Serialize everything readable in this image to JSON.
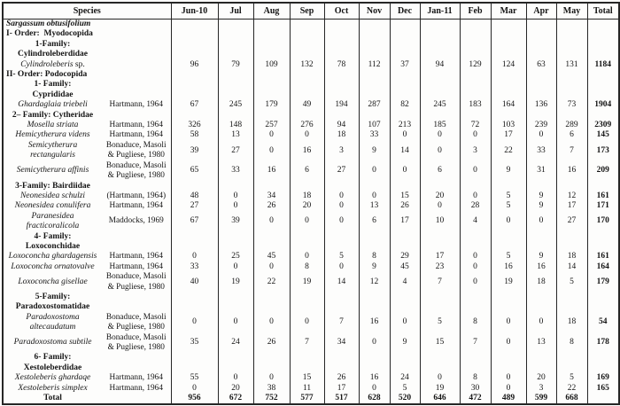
{
  "header": {
    "species_label": "Species",
    "months": [
      "Jun-10",
      "Jul",
      "Aug",
      "Sep",
      "Oct",
      "Nov",
      "Dec",
      "Jan-11",
      "Feb",
      "Mar",
      "Apr",
      "May",
      "Total"
    ]
  },
  "rows": [
    {
      "kind": "group",
      "style": "bolditalic",
      "align": "left",
      "name": "Sargassum obtusifolium"
    },
    {
      "kind": "group",
      "style": "bold",
      "align": "left",
      "name": "I- Order:  Myodocopida"
    },
    {
      "kind": "group",
      "style": "bold",
      "align": "center",
      "name": "1-Family:\nCylindroleberdidae"
    },
    {
      "kind": "species",
      "name": "Cylindroleberis",
      "name_plain": " sp.",
      "author": "",
      "values": [
        96,
        79,
        109,
        132,
        78,
        112,
        37,
        94,
        129,
        124,
        63,
        131
      ],
      "total": 1184
    },
    {
      "kind": "group",
      "style": "bold",
      "align": "left",
      "name": "II- Order: Podocopida"
    },
    {
      "kind": "group",
      "style": "bold",
      "align": "center",
      "name": "1- Family:\nCyprididae"
    },
    {
      "kind": "species",
      "name": "Ghardaglaia triebeli",
      "author": "Hartmann, 1964",
      "values": [
        67,
        245,
        179,
        49,
        194,
        287,
        82,
        245,
        183,
        164,
        136,
        73
      ],
      "total": 1904
    },
    {
      "kind": "group",
      "style": "bold",
      "align": "center",
      "name": "2– Family: Cytheridae"
    },
    {
      "kind": "species",
      "name": "Mosella striata",
      "author": "Hartmann, 1964",
      "values": [
        326,
        148,
        257,
        276,
        94,
        107,
        213,
        185,
        72,
        103,
        239,
        289
      ],
      "total": 2309
    },
    {
      "kind": "species",
      "name": "Hemicytherura videns",
      "author": "Hartmann, 1964",
      "values": [
        58,
        13,
        0,
        0,
        18,
        33,
        0,
        0,
        0,
        17,
        0,
        6
      ],
      "total": 145
    },
    {
      "kind": "species",
      "name": "Semicytherura\nrectangularis",
      "author": "Bonaduce, Masoli\n& Pugliese, 1980",
      "values": [
        39,
        27,
        0,
        16,
        3,
        9,
        14,
        0,
        3,
        22,
        33,
        7
      ],
      "total": 173
    },
    {
      "kind": "species",
      "name": "Semicytherura affinis",
      "author": "Bonaduce, Masoli\n& Pugliese, 1980",
      "values": [
        65,
        33,
        16,
        6,
        27,
        0,
        0,
        6,
        0,
        9,
        31,
        16
      ],
      "total": 209
    },
    {
      "kind": "group",
      "style": "bold",
      "align": "center",
      "name": "3-Family: Bairdiidae"
    },
    {
      "kind": "species",
      "name": "Neonesidea schulzi",
      "author": "(Hartmann, 1964)",
      "values": [
        48,
        0,
        34,
        18,
        0,
        0,
        15,
        20,
        0,
        5,
        9,
        12
      ],
      "total": 161
    },
    {
      "kind": "species",
      "name": "Neonesidea conulifera",
      "author": "Hartmann, 1964",
      "values": [
        27,
        0,
        26,
        20,
        0,
        13,
        26,
        0,
        28,
        5,
        9,
        17
      ],
      "total": 171
    },
    {
      "kind": "species",
      "name": "Paranesidea\nfracticoralicola",
      "author": "Maddocks, 1969",
      "values": [
        67,
        39,
        0,
        0,
        0,
        6,
        17,
        10,
        4,
        0,
        0,
        27
      ],
      "total": 170
    },
    {
      "kind": "group",
      "style": "bold",
      "align": "center",
      "name": "4- Family:\nLoxoconchidae"
    },
    {
      "kind": "species",
      "name": "Loxoconcha ghardagensis",
      "author": "Hartmann, 1964",
      "values": [
        0,
        25,
        45,
        0,
        5,
        8,
        29,
        17,
        0,
        5,
        9,
        18
      ],
      "total": 161
    },
    {
      "kind": "species",
      "name": "Loxoconcha ornatovalve",
      "author": "Hartmann, 1964",
      "values": [
        33,
        0,
        0,
        8,
        0,
        9,
        45,
        23,
        0,
        16,
        16,
        14
      ],
      "total": 164
    },
    {
      "kind": "species",
      "name": "Loxoconcha gisellae",
      "author": "Bonaduce, Masoli\n& Pugliese, 1980",
      "values": [
        40,
        19,
        22,
        19,
        14,
        12,
        4,
        7,
        0,
        19,
        18,
        5
      ],
      "total": 179
    },
    {
      "kind": "group",
      "style": "bold",
      "align": "center",
      "name": "5-Family:\nParadoxostomatidae"
    },
    {
      "kind": "species",
      "name": "Paradoxostoma\naltecaudatum",
      "author": "Bonaduce, Masoli\n& Pugliese, 1980",
      "values": [
        0,
        0,
        0,
        0,
        7,
        16,
        0,
        5,
        8,
        0,
        0,
        18
      ],
      "total": 54
    },
    {
      "kind": "species",
      "name": "Paradoxostoma subtile",
      "author": "Bonaduce, Masoli\n& Pugliese, 1980",
      "values": [
        35,
        24,
        26,
        7,
        34,
        0,
        9,
        15,
        7,
        0,
        13,
        8
      ],
      "total": 178
    },
    {
      "kind": "group",
      "style": "bold",
      "align": "center",
      "name": "6- Family:\nXestoleberdidae"
    },
    {
      "kind": "species",
      "name": "Xestoleberis ghardaqe",
      "author": "Hartmann, 1964",
      "values": [
        55,
        0,
        0,
        15,
        26,
        16,
        24,
        0,
        8,
        0,
        20,
        5
      ],
      "total": 169
    },
    {
      "kind": "species",
      "name": "Xestoleberis simplex",
      "author": "Hartmann, 1964",
      "values": [
        0,
        20,
        38,
        11,
        17,
        0,
        5,
        19,
        30,
        0,
        3,
        22
      ],
      "total": 165
    },
    {
      "kind": "total",
      "name": "Total",
      "values": [
        956,
        672,
        752,
        577,
        517,
        628,
        520,
        646,
        472,
        489,
        599,
        668
      ],
      "total": ""
    }
  ]
}
